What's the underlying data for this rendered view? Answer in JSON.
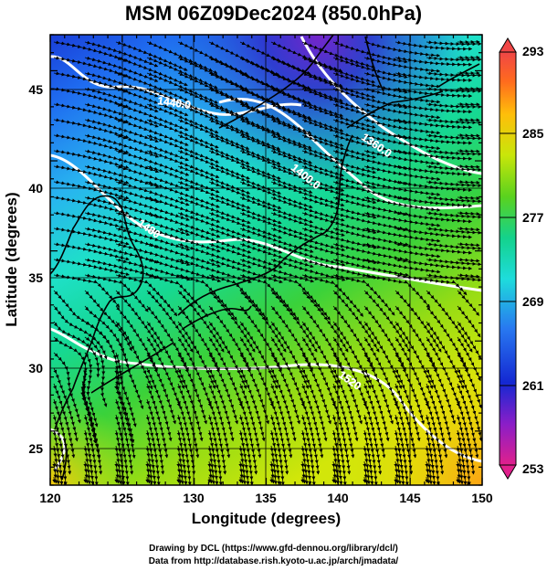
{
  "title": "MSM 06Z09Dec2024 (850.0hPa)",
  "axes": {
    "xlabel": "Longitude (degrees)",
    "ylabel": "Latitude  (degrees)",
    "xticks": [
      "120",
      "125",
      "130",
      "135",
      "140",
      "145",
      "150"
    ],
    "yticks": [
      "25",
      "30",
      "35",
      "40",
      "45"
    ],
    "xlim": [
      120,
      150
    ],
    "ylim": [
      22.5,
      47.5
    ]
  },
  "contours": {
    "labels": [
      "1440.0",
      "1400.0",
      "1360.0",
      "1480",
      "1520"
    ],
    "color": "#ffffff"
  },
  "colorbar": {
    "ticks": [
      "293",
      "285",
      "277",
      "269",
      "261",
      "253"
    ],
    "range": [
      253,
      293
    ],
    "colors": [
      "#e0208c",
      "#8a1ec8",
      "#1428d2",
      "#2878f0",
      "#1edcdc",
      "#14d28c",
      "#5ad21e",
      "#c8e60a",
      "#ffbe0a",
      "#ff6a1e",
      "#f04646"
    ]
  },
  "credits": {
    "line1": "Drawing by DCL (https://www.gfd-dennou.org/library/dcl/)",
    "line2": "Data from http://database.rish.kyoto-u.ac.jp/arch/jmadata/"
  }
}
